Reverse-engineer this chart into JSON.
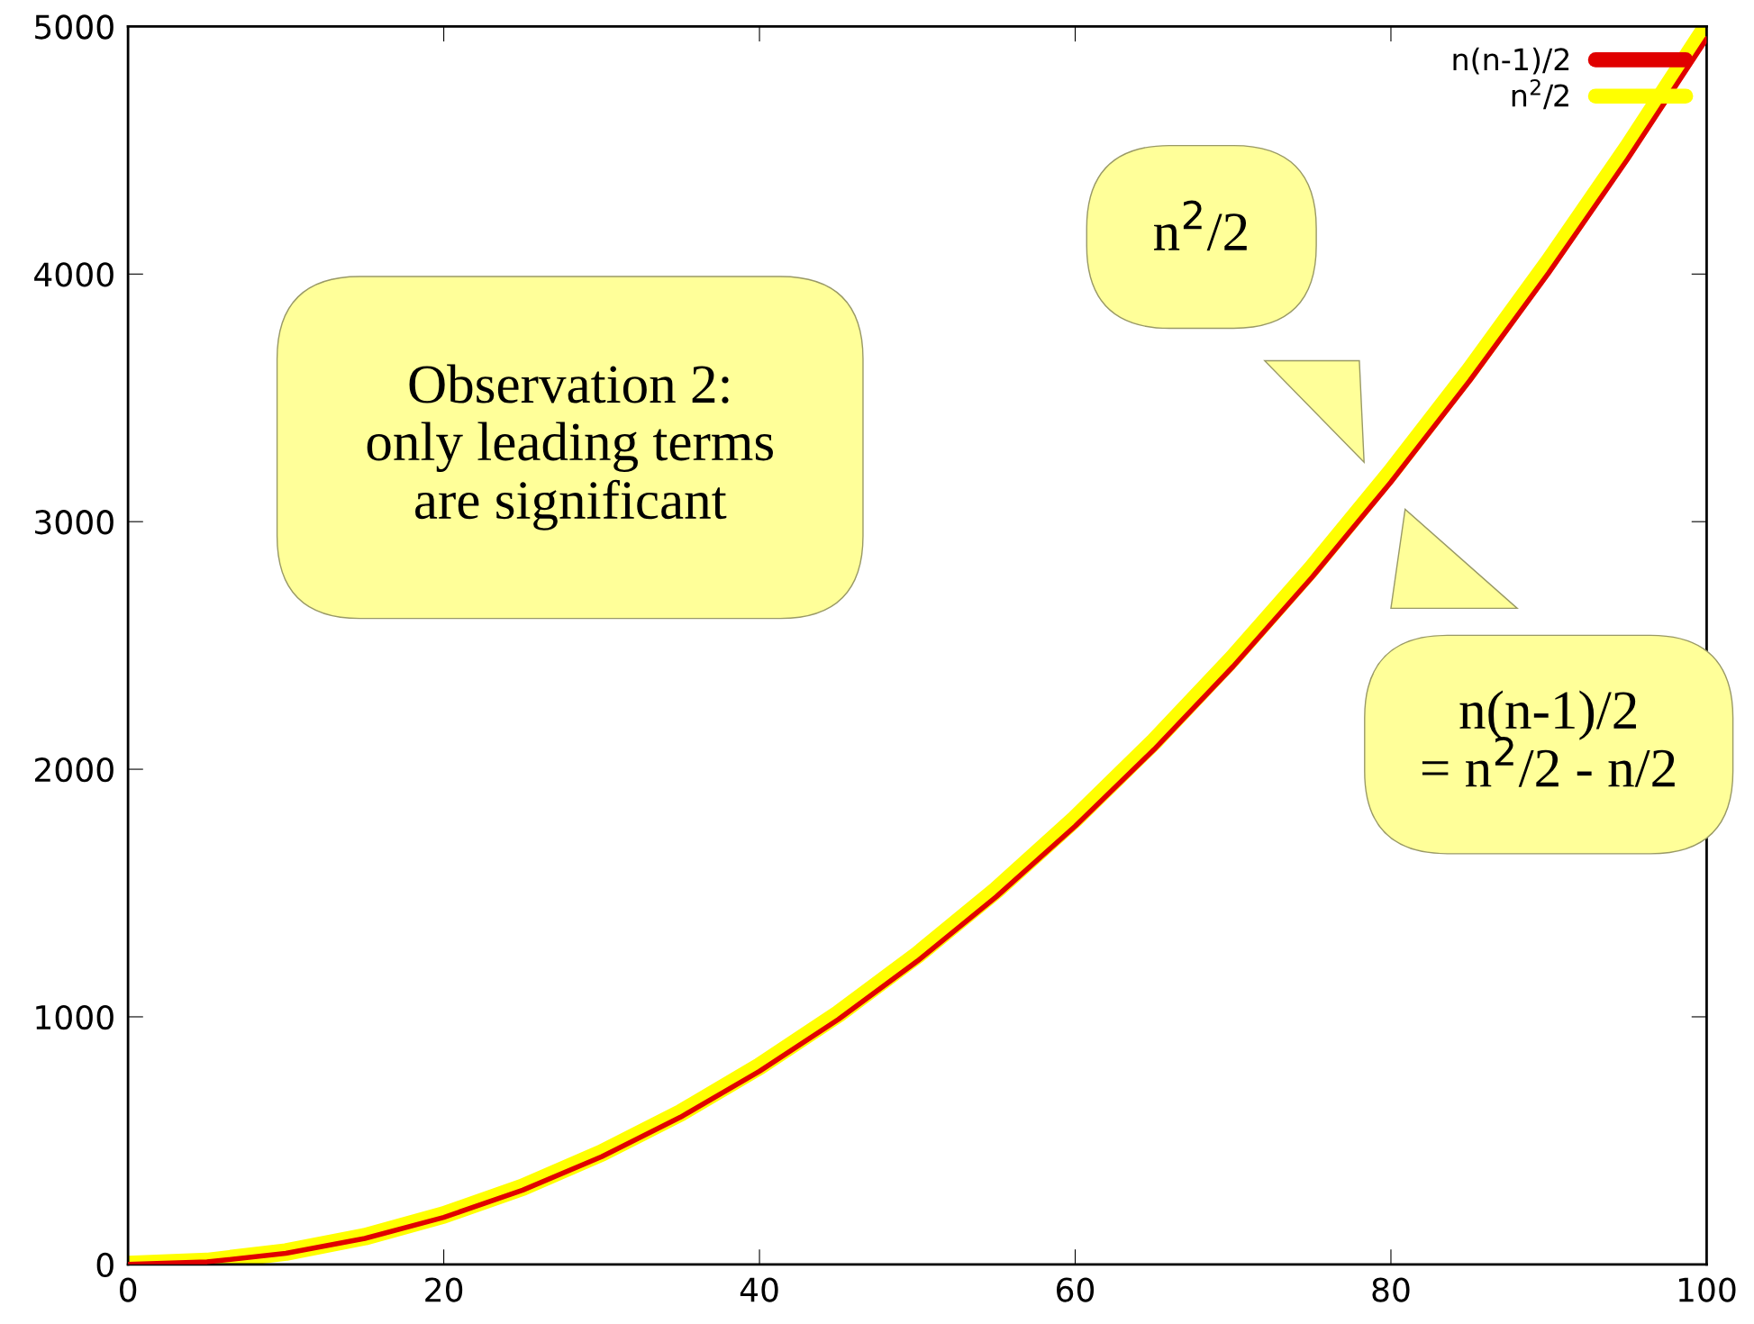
{
  "chart_data": {
    "type": "line",
    "xlim": [
      0,
      100
    ],
    "ylim": [
      0,
      5000
    ],
    "xticks": [
      0,
      20,
      40,
      60,
      80,
      100
    ],
    "yticks": [
      0,
      1000,
      2000,
      3000,
      4000,
      5000
    ],
    "grid": false,
    "legend": "top right",
    "line_style": "solid",
    "marker": "none",
    "x": [
      0,
      5,
      10,
      15,
      20,
      25,
      30,
      35,
      40,
      45,
      50,
      55,
      60,
      65,
      70,
      75,
      80,
      85,
      90,
      95,
      100
    ],
    "series": [
      {
        "name": "n(n-1)/2",
        "color": "#e00000",
        "values": [
          0,
          10,
          45,
          105,
          190,
          300,
          435,
          595,
          780,
          990,
          1225,
          1485,
          1770,
          2080,
          2415,
          2775,
          3160,
          3570,
          4005,
          4465,
          4950
        ]
      },
      {
        "name": "n$^{2}$/2",
        "color": "#ffff00",
        "values": [
          0,
          12,
          50,
          112,
          200,
          312,
          450,
          612,
          800,
          1012,
          1250,
          1512,
          1800,
          2112,
          2450,
          2812,
          3200,
          3612,
          4050,
          4512,
          5000
        ]
      }
    ],
    "annotations": [
      "Observation 2:\nonly leading terms\nare significant",
      "n$^{2}$/2",
      "n(n-1)/2\n= n$^{2}$/2 - n/2"
    ]
  }
}
